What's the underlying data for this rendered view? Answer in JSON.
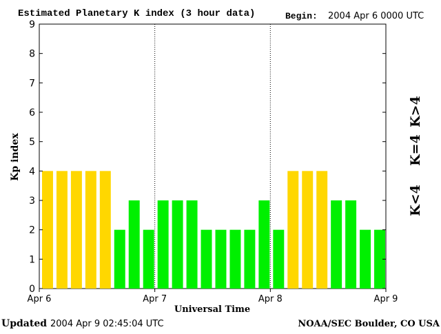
{
  "header": {
    "title": "Estimated Planetary K index (3 hour data)",
    "begin_label": "Begin:",
    "begin_value": "2004 Apr 6 0000 UTC"
  },
  "footer": {
    "updated_label": "Updated",
    "updated_value": "2004 Apr  9 02:45:04 UTC",
    "source": "NOAA/SEC Boulder, CO USA"
  },
  "legend": {
    "high": "K>4",
    "equal": "K=4",
    "low": "K<4"
  },
  "colors": {
    "low": "#00f000",
    "equal": "#ffd700",
    "high": "#ff2000"
  },
  "chart_data": {
    "type": "bar",
    "title": "Estimated Planetary K index (3 hour data)",
    "xlabel": "Universal Time",
    "ylabel": "Kp index",
    "ylim": [
      0,
      9
    ],
    "yticks": [
      0,
      1,
      2,
      3,
      4,
      5,
      6,
      7,
      8,
      9
    ],
    "xtick_labels": [
      "Apr 6",
      "Apr 7",
      "Apr 8",
      "Apr 9"
    ],
    "day_dividers": [
      1,
      2
    ],
    "categories": [
      "Apr 6 00",
      "Apr 6 03",
      "Apr 6 06",
      "Apr 6 09",
      "Apr 6 12",
      "Apr 6 15",
      "Apr 6 18",
      "Apr 6 21",
      "Apr 7 00",
      "Apr 7 03",
      "Apr 7 06",
      "Apr 7 09",
      "Apr 7 12",
      "Apr 7 15",
      "Apr 7 18",
      "Apr 7 21",
      "Apr 8 00",
      "Apr 8 03",
      "Apr 8 06",
      "Apr 8 09",
      "Apr 8 12",
      "Apr 8 15",
      "Apr 8 18",
      "Apr 8 21"
    ],
    "values": [
      4,
      4,
      4,
      4,
      4,
      2,
      3,
      2,
      3,
      3,
      3,
      2,
      2,
      2,
      2,
      3,
      2,
      4,
      4,
      4,
      3,
      3,
      2,
      2
    ],
    "grid": false
  }
}
